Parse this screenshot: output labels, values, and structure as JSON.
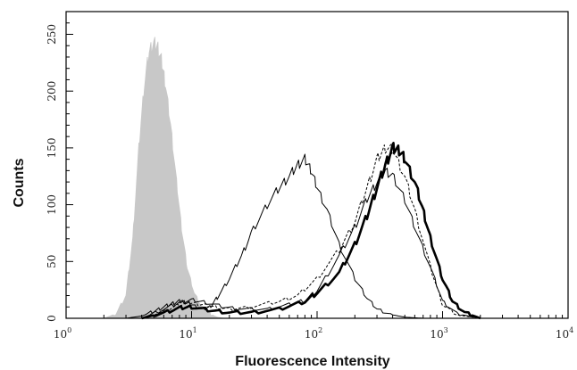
{
  "chart_data": {
    "type": "area",
    "xlabel": "Fluorescence Intensity",
    "ylabel": "Counts",
    "x_scale": "log",
    "xlim": [
      1,
      10000
    ],
    "ylim": [
      0,
      270
    ],
    "x_ticks": [
      {
        "base": "10",
        "exp": "0",
        "value": 1
      },
      {
        "base": "10",
        "exp": "1",
        "value": 10
      },
      {
        "base": "10",
        "exp": "2",
        "value": 100
      },
      {
        "base": "10",
        "exp": "3",
        "value": 1000
      },
      {
        "base": "10",
        "exp": "4",
        "value": 10000
      }
    ],
    "y_ticks": [
      "0",
      "50",
      "100",
      "150",
      "200",
      "250"
    ],
    "grid": false,
    "legend": "none",
    "series": [
      {
        "style": "filled-gray",
        "color": "#c8c8c8",
        "points": [
          [
            2.0,
            0
          ],
          [
            2.5,
            4
          ],
          [
            3.0,
            20
          ],
          [
            3.4,
            70
          ],
          [
            3.8,
            150
          ],
          [
            4.2,
            205
          ],
          [
            4.6,
            235
          ],
          [
            5.0,
            242
          ],
          [
            5.4,
            238
          ],
          [
            5.8,
            225
          ],
          [
            6.2,
            205
          ],
          [
            6.8,
            170
          ],
          [
            7.5,
            125
          ],
          [
            8.3,
            80
          ],
          [
            9.2,
            45
          ],
          [
            10.5,
            22
          ],
          [
            12,
            10
          ],
          [
            14,
            4
          ],
          [
            16,
            1
          ],
          [
            18,
            0
          ]
        ]
      },
      {
        "style": "thin-solid",
        "color": "#000000",
        "points": [
          [
            3,
            0
          ],
          [
            4,
            2
          ],
          [
            5,
            6
          ],
          [
            6,
            10
          ],
          [
            7,
            13
          ],
          [
            8,
            15
          ],
          [
            9,
            14
          ],
          [
            10,
            12
          ],
          [
            12,
            8
          ],
          [
            14,
            10
          ],
          [
            16,
            18
          ],
          [
            20,
            35
          ],
          [
            25,
            55
          ],
          [
            30,
            75
          ],
          [
            40,
            100
          ],
          [
            50,
            115
          ],
          [
            60,
            125
          ],
          [
            70,
            135
          ],
          [
            80,
            140
          ],
          [
            90,
            130
          ],
          [
            100,
            115
          ],
          [
            120,
            95
          ],
          [
            150,
            65
          ],
          [
            200,
            35
          ],
          [
            250,
            18
          ],
          [
            300,
            8
          ],
          [
            400,
            3
          ],
          [
            500,
            1
          ],
          [
            700,
            0
          ]
        ]
      },
      {
        "style": "dashed",
        "color": "#000000",
        "points": [
          [
            4,
            0
          ],
          [
            6,
            6
          ],
          [
            8,
            12
          ],
          [
            10,
            14
          ],
          [
            12,
            12
          ],
          [
            15,
            10
          ],
          [
            20,
            8
          ],
          [
            30,
            10
          ],
          [
            50,
            15
          ],
          [
            70,
            20
          ],
          [
            100,
            35
          ],
          [
            150,
            60
          ],
          [
            200,
            85
          ],
          [
            250,
            115
          ],
          [
            300,
            140
          ],
          [
            350,
            150
          ],
          [
            400,
            148
          ],
          [
            500,
            125
          ],
          [
            600,
            95
          ],
          [
            800,
            45
          ],
          [
            1000,
            12
          ],
          [
            1300,
            3
          ],
          [
            2000,
            0
          ]
        ]
      },
      {
        "style": "thick-solid",
        "color": "#000000",
        "points": [
          [
            4,
            0
          ],
          [
            6,
            5
          ],
          [
            8,
            9
          ],
          [
            10,
            10
          ],
          [
            14,
            7
          ],
          [
            20,
            5
          ],
          [
            30,
            5
          ],
          [
            50,
            8
          ],
          [
            80,
            15
          ],
          [
            100,
            22
          ],
          [
            150,
            40
          ],
          [
            200,
            65
          ],
          [
            250,
            90
          ],
          [
            300,
            115
          ],
          [
            350,
            135
          ],
          [
            400,
            150
          ],
          [
            450,
            148
          ],
          [
            500,
            140
          ],
          [
            600,
            120
          ],
          [
            700,
            95
          ],
          [
            800,
            70
          ],
          [
            1000,
            35
          ],
          [
            1200,
            15
          ],
          [
            1500,
            5
          ],
          [
            2000,
            0
          ]
        ]
      },
      {
        "style": "thin-solid",
        "color": "#000000",
        "points": [
          [
            4,
            0
          ],
          [
            6,
            8
          ],
          [
            8,
            14
          ],
          [
            10,
            16
          ],
          [
            13,
            14
          ],
          [
            18,
            10
          ],
          [
            25,
            8
          ],
          [
            40,
            8
          ],
          [
            60,
            12
          ],
          [
            80,
            16
          ],
          [
            100,
            24
          ],
          [
            150,
            55
          ],
          [
            200,
            80
          ],
          [
            250,
            105
          ],
          [
            300,
            120
          ],
          [
            350,
            130
          ],
          [
            400,
            125
          ],
          [
            500,
            105
          ],
          [
            600,
            80
          ],
          [
            800,
            45
          ],
          [
            1000,
            15
          ],
          [
            1300,
            4
          ],
          [
            2000,
            0
          ]
        ]
      }
    ]
  }
}
